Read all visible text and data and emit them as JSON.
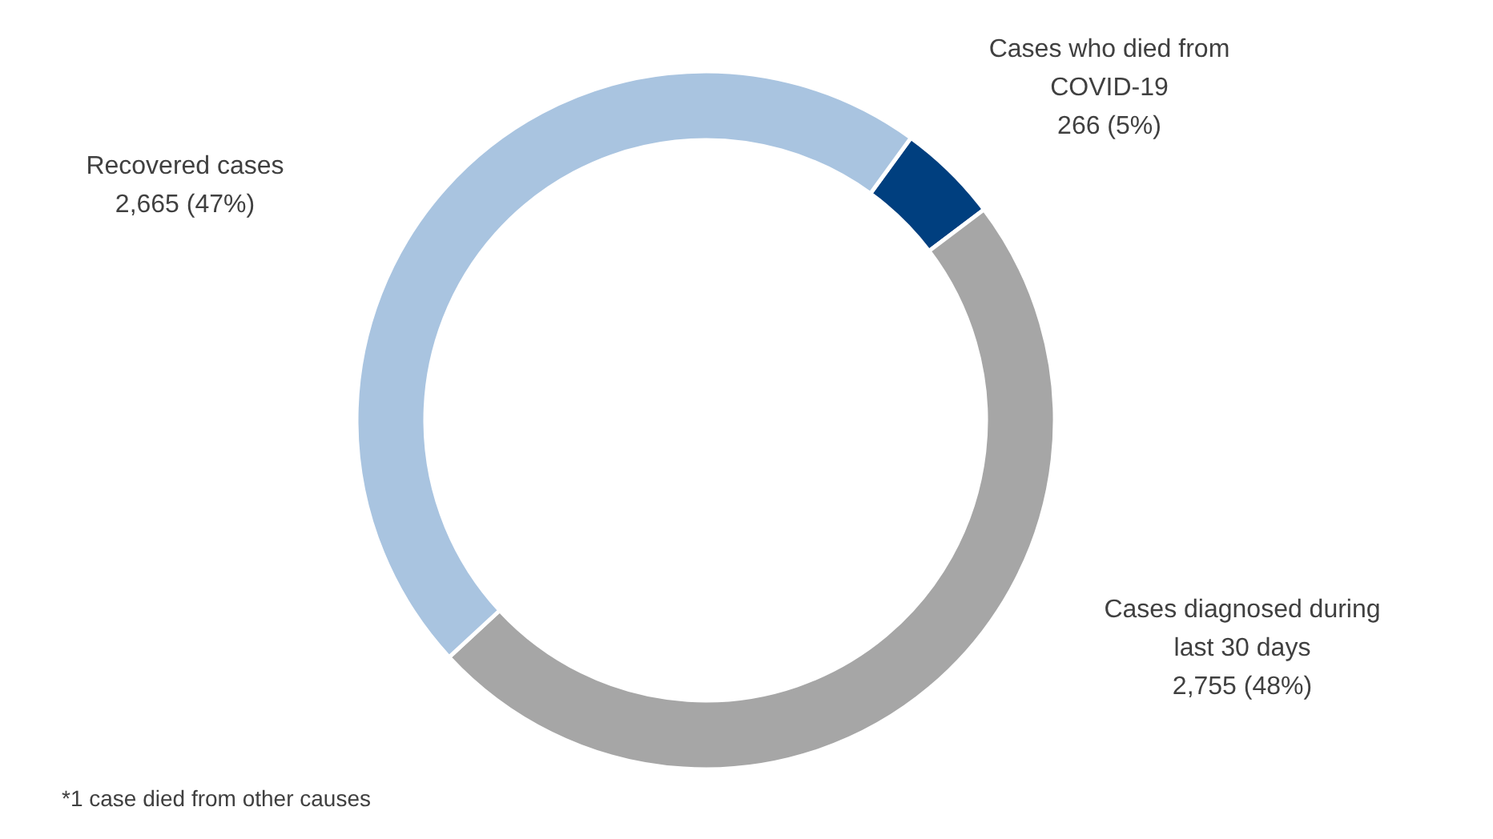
{
  "chart_data": {
    "type": "donut",
    "categories": [
      "Cases who died from COVID-19",
      "Cases diagnosed during last 30 days",
      "Recovered cases"
    ],
    "values": [
      266,
      2755,
      2665
    ],
    "colors": [
      "#003f7f",
      "#a6a6a6",
      "#a9c4e0"
    ],
    "value_labels": [
      "266 (5%)",
      "2,755 (48%)",
      "2,665 (47%)"
    ],
    "annotations": [
      "*1 case died from other causes"
    ]
  }
}
